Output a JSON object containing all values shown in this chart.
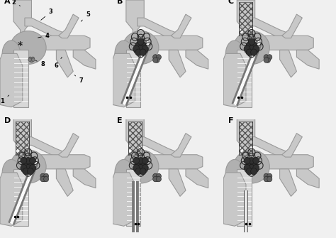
{
  "bg_color": "#f0f0f0",
  "vessel_color": "#c8c8c8",
  "vessel_edge": "#999999",
  "vessel_light": "#d8d8d8",
  "aneurysm_color": "#b0b0b0",
  "coil_color": "#333333",
  "thrombus_color": "#505050",
  "thrombus_dark": "#303030",
  "stent_color": "#666666",
  "label_color": "#000000",
  "white": "#ffffff",
  "fig_width": 4.74,
  "fig_height": 3.35,
  "panel_labels": [
    "A",
    "B",
    "C",
    "D",
    "E",
    "F"
  ]
}
